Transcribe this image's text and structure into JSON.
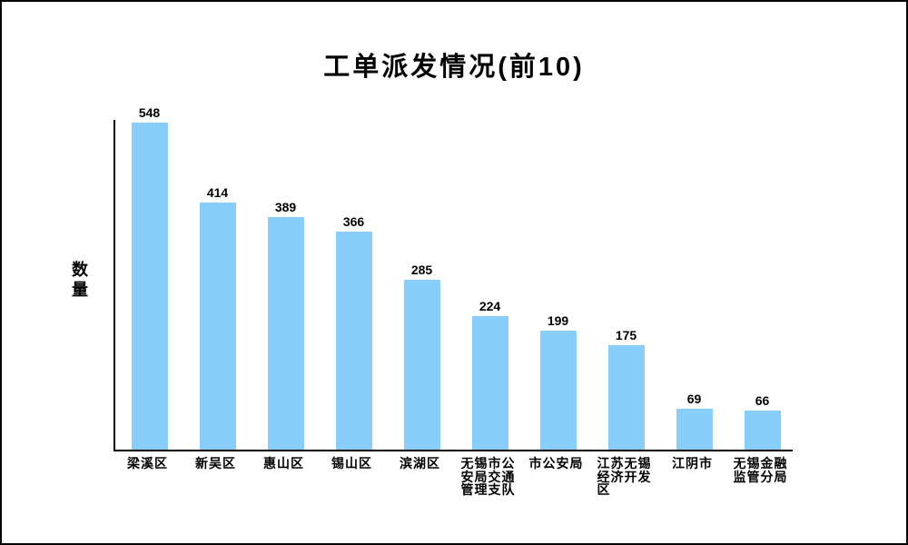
{
  "chart_data": {
    "type": "bar",
    "title": "工单派发情况(前10)",
    "ylabel": "数量",
    "xlabel": "",
    "categories": [
      "梁溪区",
      "新吴区",
      "惠山区",
      "锡山区",
      "滨湖区",
      "无锡市公安局交通管理支队",
      "市公安局",
      "江苏无锡经济开发区",
      "江阴市",
      "无锡金融监管分局"
    ],
    "values": [
      548,
      414,
      389,
      366,
      285,
      224,
      199,
      175,
      69,
      66
    ],
    "ylim": [
      0,
      548
    ],
    "bar_color": "#87CEFA",
    "axis_color": "#000000",
    "text_color": "#000000",
    "background_color": "#ffffff",
    "grid": false,
    "legend": false,
    "value_labels_shown": true,
    "label_wrap_chars_per_line": 4
  }
}
